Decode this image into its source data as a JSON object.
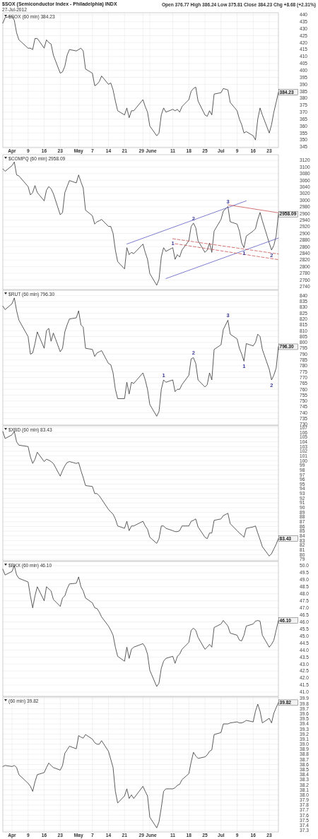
{
  "chart_data": [
    {
      "type": "line",
      "title": "$SOX (Semiconductor Index - Philadelphia) INDX",
      "subtitle": "27-Jul-2012",
      "grid": true,
      "annotations": [
        "Open 376.77 High 386.24 Low 375.81 Close 384.23 Chg +8.68 (+2.31%)"
      ],
      "x": [
        "2012-03-29",
        "2012-03-30",
        "2012-04-02",
        "2012-04-03",
        "2012-04-04",
        "2012-04-05",
        "2012-04-09",
        "2012-04-10",
        "2012-04-11",
        "2012-04-12",
        "2012-04-13",
        "2012-04-16",
        "2012-04-17",
        "2012-04-18",
        "2012-04-19",
        "2012-04-20",
        "2012-04-23",
        "2012-04-24",
        "2012-04-25",
        "2012-04-26",
        "2012-04-27",
        "2012-04-30",
        "2012-05-01",
        "2012-05-02",
        "2012-05-03",
        "2012-05-04",
        "2012-05-07",
        "2012-05-08",
        "2012-05-09",
        "2012-05-10",
        "2012-05-11",
        "2012-05-14",
        "2012-05-15",
        "2012-05-16",
        "2012-05-17",
        "2012-05-18",
        "2012-05-21",
        "2012-05-22",
        "2012-05-23",
        "2012-05-24",
        "2012-05-25",
        "2012-05-29",
        "2012-05-30",
        "2012-05-31",
        "2012-06-01",
        "2012-06-04",
        "2012-06-05",
        "2012-06-06",
        "2012-06-07",
        "2012-06-08",
        "2012-06-11",
        "2012-06-12",
        "2012-06-13",
        "2012-06-14",
        "2012-06-15",
        "2012-06-18",
        "2012-06-19",
        "2012-06-20",
        "2012-06-21",
        "2012-06-22",
        "2012-06-25",
        "2012-06-26",
        "2012-06-27",
        "2012-06-28",
        "2012-06-29",
        "2012-07-02",
        "2012-07-03",
        "2012-07-05",
        "2012-07-06",
        "2012-07-09",
        "2012-07-10",
        "2012-07-11",
        "2012-07-12",
        "2012-07-13",
        "2012-07-16",
        "2012-07-17",
        "2012-07-18",
        "2012-07-19",
        "2012-07-20",
        "2012-07-23",
        "2012-07-24",
        "2012-07-25",
        "2012-07-26",
        "2012-07-27"
      ],
      "xlim": [
        "2012-03-29",
        "2012-07-27"
      ],
      "xticks": [
        {
          "value": "2012-04-02",
          "label": "Apr"
        },
        {
          "value": "2012-04-09",
          "label": "9"
        },
        {
          "value": "2012-04-16",
          "label": "16"
        },
        {
          "value": "2012-04-23",
          "label": "23"
        },
        {
          "value": "2012-05-01",
          "label": "May"
        },
        {
          "value": "2012-05-07",
          "label": "7"
        },
        {
          "value": "2012-05-14",
          "label": "14"
        },
        {
          "value": "2012-05-21",
          "label": "21"
        },
        {
          "value": "2012-05-29",
          "label": "29"
        },
        {
          "value": "2012-06-01",
          "label": "June"
        },
        {
          "value": "2012-06-11",
          "label": "11"
        },
        {
          "value": "2012-06-18",
          "label": "18"
        },
        {
          "value": "2012-06-25",
          "label": "25"
        },
        {
          "value": "2012-07-02",
          "label": "Jul"
        },
        {
          "value": "2012-07-09",
          "label": "9"
        },
        {
          "value": "2012-07-16",
          "label": "16"
        },
        {
          "value": "2012-07-23",
          "label": "23"
        }
      ],
      "ylim": [
        344.5,
        441.5
      ],
      "yticks": [
        440,
        435,
        430,
        425,
        420,
        415,
        410,
        405,
        400,
        395,
        390,
        385,
        380,
        375,
        370,
        365,
        360,
        355,
        350,
        345
      ],
      "series": [
        {
          "name": "$SOX (60 min) 384.23",
          "color": "#333333",
          "values": [
            434,
            438,
            439,
            436,
            427,
            422,
            416,
            416,
            415,
            423,
            423,
            416,
            422,
            420,
            419,
            411,
            398,
            399,
            403,
            411,
            415,
            414,
            415,
            416,
            414,
            401,
            398,
            389,
            390,
            392,
            396,
            390,
            391,
            386,
            378,
            371,
            368,
            373,
            366,
            371,
            371,
            379,
            374,
            370,
            360,
            353,
            355,
            368,
            373,
            370,
            372,
            371,
            372,
            370,
            374,
            379,
            385,
            387,
            388,
            378,
            368,
            367,
            371,
            368,
            383,
            384,
            387,
            386,
            377,
            371,
            365,
            361,
            355,
            356,
            353,
            350,
            365,
            373,
            368,
            355,
            361,
            370,
            377,
            384.23
          ],
          "value_labels": [
            null,
            null,
            null,
            null,
            null,
            null,
            null,
            null,
            null,
            null,
            null,
            null,
            null,
            null,
            null,
            null,
            null,
            null,
            null,
            null,
            null,
            null,
            null,
            null,
            null,
            null,
            null,
            null,
            null,
            null,
            null,
            null,
            null,
            null,
            null,
            null,
            null,
            null,
            null,
            null,
            null,
            null,
            null,
            null,
            null,
            null,
            null,
            null,
            null,
            null,
            null,
            null,
            null,
            null,
            null,
            null,
            null,
            null,
            null,
            null,
            null,
            null,
            null,
            null,
            null,
            null,
            null,
            null,
            null,
            null,
            null,
            null,
            null,
            null,
            null,
            null,
            null,
            null,
            null,
            null,
            null,
            null,
            null,
            "384.23"
          ]
        }
      ]
    },
    {
      "type": "line",
      "grid": true,
      "tick_labels": "y",
      "annotations": [
        {
          "text": "1",
          "x": "2012-06-11",
          "y": 2857
        },
        {
          "text": "2",
          "x": "2012-06-20",
          "y": 2931
        },
        {
          "text": "3",
          "x": "2012-07-05",
          "y": 2981
        },
        {
          "text": "1",
          "x": "2012-07-12",
          "y": 2857
        },
        {
          "text": "2",
          "x": "2012-07-24",
          "y": 2850
        }
      ],
      "x": [
        "2012-03-29",
        "2012-03-30",
        "2012-04-02",
        "2012-04-03",
        "2012-04-04",
        "2012-04-05",
        "2012-04-09",
        "2012-04-10",
        "2012-04-11",
        "2012-04-12",
        "2012-04-13",
        "2012-04-16",
        "2012-04-17",
        "2012-04-18",
        "2012-04-19",
        "2012-04-20",
        "2012-04-23",
        "2012-04-24",
        "2012-04-25",
        "2012-04-26",
        "2012-04-27",
        "2012-04-30",
        "2012-05-01",
        "2012-05-02",
        "2012-05-03",
        "2012-05-04",
        "2012-05-07",
        "2012-05-08",
        "2012-05-09",
        "2012-05-10",
        "2012-05-11",
        "2012-05-14",
        "2012-05-15",
        "2012-05-16",
        "2012-05-17",
        "2012-05-18",
        "2012-05-21",
        "2012-05-22",
        "2012-05-23",
        "2012-05-24",
        "2012-05-25",
        "2012-05-29",
        "2012-05-30",
        "2012-05-31",
        "2012-06-01",
        "2012-06-04",
        "2012-06-05",
        "2012-06-06",
        "2012-06-07",
        "2012-06-08",
        "2012-06-11",
        "2012-06-12",
        "2012-06-13",
        "2012-06-14",
        "2012-06-15",
        "2012-06-18",
        "2012-06-19",
        "2012-06-20",
        "2012-06-21",
        "2012-06-22",
        "2012-06-25",
        "2012-06-26",
        "2012-06-27",
        "2012-06-28",
        "2012-06-29",
        "2012-07-02",
        "2012-07-03",
        "2012-07-05",
        "2012-07-06",
        "2012-07-09",
        "2012-07-10",
        "2012-07-11",
        "2012-07-12",
        "2012-07-13",
        "2012-07-16",
        "2012-07-17",
        "2012-07-18",
        "2012-07-19",
        "2012-07-20",
        "2012-07-23",
        "2012-07-24",
        "2012-07-25",
        "2012-07-26",
        "2012-07-27"
      ],
      "xlim": [
        "2012-03-29",
        "2012-07-27"
      ],
      "ylim": [
        2731,
        3137
      ],
      "yticks": [
        3120,
        3100,
        3080,
        3060,
        3040,
        3020,
        3000,
        2980,
        2960,
        2940,
        2920,
        2900,
        2880,
        2860,
        2840,
        2820,
        2800,
        2780,
        2760,
        2740
      ],
      "series": [
        {
          "name": "$COMPQ (60 min) 2958.09",
          "color": "#333333",
          "values": [
            3094,
            3087,
            3104,
            3115,
            3076,
            3073,
            3041,
            3016,
            3023,
            3044,
            3023,
            2998,
            3030,
            3041,
            3034,
            3020,
            2956,
            2963,
            3023,
            3041,
            3059,
            3052,
            3076,
            3055,
            3037,
            2970,
            2953,
            2928,
            2935,
            2938,
            2942,
            2921,
            2921,
            2900,
            2850,
            2815,
            2793,
            2857,
            2836,
            2843,
            2839,
            2868,
            2843,
            2822,
            2779,
            2744,
            2762,
            2829,
            2857,
            2846,
            2857,
            2822,
            2836,
            2829,
            2850,
            2878,
            2921,
            2931,
            2917,
            2878,
            2843,
            2850,
            2871,
            2843,
            2907,
            2942,
            2967,
            2981,
            2935,
            2928,
            2907,
            2871,
            2857,
            2892,
            2907,
            2914,
            2942,
            2963,
            2938,
            2871,
            2850,
            2864,
            2892,
            2958.09
          ],
          "value_labels": [
            null,
            null,
            null,
            null,
            null,
            null,
            null,
            null,
            null,
            null,
            null,
            null,
            null,
            null,
            null,
            null,
            null,
            null,
            null,
            null,
            null,
            null,
            null,
            null,
            null,
            null,
            null,
            null,
            null,
            null,
            null,
            null,
            null,
            null,
            null,
            null,
            null,
            null,
            null,
            null,
            null,
            null,
            null,
            null,
            null,
            null,
            null,
            null,
            null,
            null,
            null,
            null,
            null,
            null,
            null,
            null,
            null,
            null,
            null,
            null,
            null,
            null,
            null,
            null,
            null,
            null,
            null,
            null,
            null,
            null,
            null,
            null,
            null,
            null,
            null,
            null,
            null,
            null,
            null,
            null,
            null,
            null,
            null,
            "2958.09"
          ]
        },
        {
          "type": "line",
          "color": "#5a5ac0",
          "x": [
            "2012-05-22",
            "2012-07-13"
          ],
          "values": [
            2868,
            2998
          ]
        },
        {
          "type": "line",
          "color": "#5a5ac0",
          "x": [
            "2012-06-08",
            "2012-07-27"
          ],
          "values": [
            2764,
            2886
          ]
        },
        {
          "type": "line",
          "color": "#c85050",
          "x": [
            "2012-07-05",
            "2012-07-27"
          ],
          "values": [
            2986,
            2962
          ]
        },
        {
          "type": "line",
          "color": "#c85050",
          "line_style": "dashed",
          "x": [
            "2012-06-11",
            "2012-07-27"
          ],
          "values": [
            2884,
            2838
          ]
        },
        {
          "type": "line",
          "color": "#c85050",
          "line_style": "dashed",
          "x": [
            "2012-06-12",
            "2012-07-27"
          ],
          "values": [
            2869,
            2821
          ]
        }
      ]
    },
    {
      "type": "line",
      "grid": true,
      "tick_labels": "y",
      "annotations": [
        {
          "text": "1",
          "x": "2012-06-07",
          "y": 768
        },
        {
          "text": "2",
          "x": "2012-06-20",
          "y": 787
        },
        {
          "text": "3",
          "x": "2012-07-05",
          "y": 819
        },
        {
          "text": "1",
          "x": "2012-07-12",
          "y": 784
        },
        {
          "text": "2",
          "x": "2012-07-24",
          "y": 768
        }
      ],
      "x": [
        "2012-03-29",
        "2012-03-30",
        "2012-04-02",
        "2012-04-03",
        "2012-04-04",
        "2012-04-05",
        "2012-04-09",
        "2012-04-10",
        "2012-04-11",
        "2012-04-12",
        "2012-04-13",
        "2012-04-16",
        "2012-04-17",
        "2012-04-18",
        "2012-04-19",
        "2012-04-20",
        "2012-04-23",
        "2012-04-24",
        "2012-04-25",
        "2012-04-26",
        "2012-04-27",
        "2012-04-30",
        "2012-05-01",
        "2012-05-02",
        "2012-05-03",
        "2012-05-04",
        "2012-05-07",
        "2012-05-08",
        "2012-05-09",
        "2012-05-10",
        "2012-05-11",
        "2012-05-14",
        "2012-05-15",
        "2012-05-16",
        "2012-05-17",
        "2012-05-18",
        "2012-05-21",
        "2012-05-22",
        "2012-05-23",
        "2012-05-24",
        "2012-05-25",
        "2012-05-29",
        "2012-05-30",
        "2012-05-31",
        "2012-06-01",
        "2012-06-04",
        "2012-06-05",
        "2012-06-06",
        "2012-06-07",
        "2012-06-08",
        "2012-06-11",
        "2012-06-12",
        "2012-06-13",
        "2012-06-14",
        "2012-06-15",
        "2012-06-18",
        "2012-06-19",
        "2012-06-20",
        "2012-06-21",
        "2012-06-22",
        "2012-06-25",
        "2012-06-26",
        "2012-06-27",
        "2012-06-28",
        "2012-06-29",
        "2012-07-02",
        "2012-07-03",
        "2012-07-05",
        "2012-07-06",
        "2012-07-09",
        "2012-07-10",
        "2012-07-11",
        "2012-07-12",
        "2012-07-13",
        "2012-07-16",
        "2012-07-17",
        "2012-07-18",
        "2012-07-19",
        "2012-07-20",
        "2012-07-23",
        "2012-07-24",
        "2012-07-25",
        "2012-07-26",
        "2012-07-27"
      ],
      "xlim": [
        "2012-03-29",
        "2012-07-27"
      ],
      "ylim": [
        729.4,
        844.5
      ],
      "yticks": [
        840,
        835,
        830,
        825,
        820,
        815,
        810,
        805,
        800,
        795,
        790,
        785,
        780,
        775,
        770,
        765,
        760,
        755,
        750,
        745,
        740,
        735,
        730
      ],
      "series": [
        {
          "name": "$RUT (60 min) 796.30",
          "color": "#333333",
          "values": [
            831,
            828,
            833,
            838,
            827,
            819,
            805,
            790,
            791,
            799,
            809,
            795,
            810,
            812,
            801,
            808,
            792,
            795,
            809,
            815,
            820,
            821,
            827,
            815,
            813,
            795,
            794,
            788,
            791,
            792,
            793,
            782,
            781,
            774,
            760,
            752,
            752,
            766,
            756,
            766,
            765,
            774,
            768,
            760,
            747,
            737,
            741,
            760,
            768,
            766,
            768,
            758,
            760,
            760,
            764,
            772,
            786,
            787,
            782,
            768,
            762,
            764,
            774,
            768,
            794,
            798,
            811,
            819,
            807,
            803,
            795,
            790,
            784,
            799,
            797,
            800,
            807,
            805,
            794,
            777,
            768,
            772,
            778,
            796.3
          ],
          "value_labels": [
            null,
            null,
            null,
            null,
            null,
            null,
            null,
            null,
            null,
            null,
            null,
            null,
            null,
            null,
            null,
            null,
            null,
            null,
            null,
            null,
            null,
            null,
            null,
            null,
            null,
            null,
            null,
            null,
            null,
            null,
            null,
            null,
            null,
            null,
            null,
            null,
            null,
            null,
            null,
            null,
            null,
            null,
            null,
            null,
            null,
            null,
            null,
            null,
            null,
            null,
            null,
            null,
            null,
            null,
            null,
            null,
            null,
            null,
            null,
            null,
            null,
            null,
            null,
            null,
            null,
            null,
            null,
            null,
            null,
            null,
            null,
            null,
            null,
            null,
            null,
            null,
            null,
            null,
            null,
            null,
            null,
            null,
            null,
            "796.30"
          ]
        }
      ]
    },
    {
      "type": "line",
      "grid": true,
      "tick_labels": "y",
      "x": [
        "2012-03-29",
        "2012-03-30",
        "2012-04-02",
        "2012-04-03",
        "2012-04-04",
        "2012-04-05",
        "2012-04-09",
        "2012-04-10",
        "2012-04-11",
        "2012-04-12",
        "2012-04-13",
        "2012-04-16",
        "2012-04-17",
        "2012-04-18",
        "2012-04-19",
        "2012-04-20",
        "2012-04-23",
        "2012-04-24",
        "2012-04-25",
        "2012-04-26",
        "2012-04-27",
        "2012-04-30",
        "2012-05-01",
        "2012-05-02",
        "2012-05-03",
        "2012-05-04",
        "2012-05-07",
        "2012-05-08",
        "2012-05-09",
        "2012-05-10",
        "2012-05-11",
        "2012-05-14",
        "2012-05-15",
        "2012-05-16",
        "2012-05-17",
        "2012-05-18",
        "2012-05-21",
        "2012-05-22",
        "2012-05-23",
        "2012-05-24",
        "2012-05-25",
        "2012-05-29",
        "2012-05-30",
        "2012-05-31",
        "2012-06-01",
        "2012-06-04",
        "2012-06-05",
        "2012-06-06",
        "2012-06-07",
        "2012-06-08",
        "2012-06-11",
        "2012-06-12",
        "2012-06-13",
        "2012-06-14",
        "2012-06-15",
        "2012-06-18",
        "2012-06-19",
        "2012-06-20",
        "2012-06-21",
        "2012-06-22",
        "2012-06-25",
        "2012-06-26",
        "2012-06-27",
        "2012-06-28",
        "2012-06-29",
        "2012-07-02",
        "2012-07-03",
        "2012-07-05",
        "2012-07-06",
        "2012-07-09",
        "2012-07-10",
        "2012-07-11",
        "2012-07-12",
        "2012-07-13",
        "2012-07-16",
        "2012-07-17",
        "2012-07-18",
        "2012-07-19",
        "2012-07-20",
        "2012-07-23",
        "2012-07-24",
        "2012-07-25",
        "2012-07-26",
        "2012-07-27"
      ],
      "xlim": [
        "2012-03-29",
        "2012-07-27"
      ],
      "ylim": [
        78.7,
        107.4
      ],
      "yticks": [
        107,
        106,
        105,
        104,
        103,
        102,
        101,
        100,
        99,
        98,
        97,
        96,
        95,
        94,
        93,
        92,
        91,
        90,
        89,
        88,
        87,
        86,
        85,
        84,
        83,
        82,
        81,
        80,
        79
      ],
      "series": [
        {
          "name": "$XBD (60 min) 83.43",
          "color": "#333333",
          "values": [
            106.2,
            104.7,
            105.5,
            106.2,
            104.0,
            103.3,
            103.0,
            100.8,
            99.4,
            100.3,
            101.8,
            99.8,
            100.3,
            100.1,
            99.8,
            99.4,
            96.7,
            97.9,
            98.9,
            99.6,
            99.8,
            99.4,
            99.6,
            97.9,
            96.4,
            94.7,
            94.5,
            93.0,
            93.0,
            92.5,
            91.8,
            89.6,
            89.1,
            88.6,
            87.6,
            86.1,
            85.6,
            87.1,
            85.1,
            86.1,
            86.1,
            87.1,
            86.1,
            85.4,
            83.7,
            82.4,
            83.4,
            86.1,
            86.1,
            85.6,
            85.1,
            84.9,
            84.9,
            85.1,
            86.1,
            86.1,
            87.1,
            87.3,
            87.6,
            85.9,
            83.7,
            83.4,
            84.6,
            84.6,
            87.3,
            87.6,
            88.3,
            88.8,
            86.6,
            85.1,
            84.6,
            84.2,
            83.7,
            85.6,
            85.9,
            86.1,
            84.6,
            83.2,
            81.7,
            79.7,
            80.2,
            81.2,
            82.2,
            83.43
          ],
          "value_labels": [
            null,
            null,
            null,
            null,
            null,
            null,
            null,
            null,
            null,
            null,
            null,
            null,
            null,
            null,
            null,
            null,
            null,
            null,
            null,
            null,
            null,
            null,
            null,
            null,
            null,
            null,
            null,
            null,
            null,
            null,
            null,
            null,
            null,
            null,
            null,
            null,
            null,
            null,
            null,
            null,
            null,
            null,
            null,
            null,
            null,
            null,
            null,
            null,
            null,
            null,
            null,
            null,
            null,
            null,
            null,
            null,
            null,
            null,
            null,
            null,
            null,
            null,
            null,
            null,
            null,
            null,
            null,
            null,
            null,
            null,
            null,
            null,
            null,
            null,
            null,
            null,
            null,
            null,
            null,
            null,
            null,
            null,
            null,
            "83.43"
          ]
        }
      ]
    },
    {
      "type": "line",
      "grid": true,
      "tick_labels": "y",
      "x": [
        "2012-03-29",
        "2012-03-30",
        "2012-04-02",
        "2012-04-03",
        "2012-04-04",
        "2012-04-05",
        "2012-04-09",
        "2012-04-10",
        "2012-04-11",
        "2012-04-12",
        "2012-04-13",
        "2012-04-16",
        "2012-04-17",
        "2012-04-18",
        "2012-04-19",
        "2012-04-20",
        "2012-04-23",
        "2012-04-24",
        "2012-04-25",
        "2012-04-26",
        "2012-04-27",
        "2012-04-30",
        "2012-05-01",
        "2012-05-02",
        "2012-05-03",
        "2012-05-04",
        "2012-05-07",
        "2012-05-08",
        "2012-05-09",
        "2012-05-10",
        "2012-05-11",
        "2012-05-14",
        "2012-05-15",
        "2012-05-16",
        "2012-05-17",
        "2012-05-18",
        "2012-05-21",
        "2012-05-22",
        "2012-05-23",
        "2012-05-24",
        "2012-05-25",
        "2012-05-29",
        "2012-05-30",
        "2012-05-31",
        "2012-06-01",
        "2012-06-04",
        "2012-06-05",
        "2012-06-06",
        "2012-06-07",
        "2012-06-08",
        "2012-06-11",
        "2012-06-12",
        "2012-06-13",
        "2012-06-14",
        "2012-06-15",
        "2012-06-18",
        "2012-06-19",
        "2012-06-20",
        "2012-06-21",
        "2012-06-22",
        "2012-06-25",
        "2012-06-26",
        "2012-06-27",
        "2012-06-28",
        "2012-06-29",
        "2012-07-02",
        "2012-07-03",
        "2012-07-05",
        "2012-07-06",
        "2012-07-09",
        "2012-07-10",
        "2012-07-11",
        "2012-07-12",
        "2012-07-13",
        "2012-07-16",
        "2012-07-17",
        "2012-07-18",
        "2012-07-19",
        "2012-07-20",
        "2012-07-23",
        "2012-07-24",
        "2012-07-25",
        "2012-07-26",
        "2012-07-27"
      ],
      "xlim": [
        "2012-03-29",
        "2012-07-27"
      ],
      "ylim": [
        40.7,
        50.3
      ],
      "yticks": [
        {
          "value": 50,
          "label": "50.0"
        },
        49.5,
        {
          "value": 49,
          "label": "49.0"
        },
        48.5,
        {
          "value": 48,
          "label": "48.0"
        },
        47.5,
        {
          "value": 47,
          "label": "47.0"
        },
        46.5,
        {
          "value": 46,
          "label": "46.0"
        },
        45.5,
        {
          "value": 45,
          "label": "45.0"
        },
        44.5,
        {
          "value": 44,
          "label": "44.0"
        },
        43.5,
        {
          "value": 43,
          "label": "43.0"
        },
        42.5,
        {
          "value": 42,
          "label": "42.0"
        },
        41.5,
        {
          "value": 41,
          "label": "41.0"
        }
      ],
      "series": [
        {
          "name": "$BKX (60 min) 46.10",
          "color": "#333333",
          "values": [
            49.75,
            49.34,
            49.59,
            50.0,
            49.34,
            49.1,
            48.84,
            47.85,
            47.0,
            47.85,
            48.5,
            47.5,
            48.5,
            48.35,
            48.2,
            47.6,
            47.1,
            47.7,
            47.85,
            48.35,
            48.7,
            48.75,
            49.2,
            48.5,
            48.2,
            47.7,
            47.35,
            47.0,
            46.95,
            46.7,
            46.35,
            45.7,
            45.4,
            45.05,
            44.2,
            43.55,
            43.2,
            44.2,
            43.4,
            44.05,
            44.2,
            44.45,
            44.2,
            43.7,
            42.55,
            41.4,
            41.65,
            42.7,
            43.2,
            43.4,
            43.55,
            43.05,
            43.55,
            43.7,
            44.05,
            44.55,
            45.4,
            45.55,
            45.4,
            44.9,
            44.05,
            44.2,
            44.4,
            44.2,
            45.6,
            45.85,
            46.1,
            45.7,
            45.2,
            45.05,
            44.7,
            44.65,
            45.05,
            45.7,
            45.85,
            46.05,
            46.1,
            46.05,
            45.05,
            44.2,
            44.4,
            44.7,
            45.4,
            46.1
          ],
          "value_labels": [
            null,
            null,
            null,
            null,
            null,
            null,
            null,
            null,
            null,
            null,
            null,
            null,
            null,
            null,
            null,
            null,
            null,
            null,
            null,
            null,
            null,
            null,
            null,
            null,
            null,
            null,
            null,
            null,
            null,
            null,
            null,
            null,
            null,
            null,
            null,
            null,
            null,
            null,
            null,
            null,
            null,
            null,
            null,
            null,
            null,
            null,
            null,
            null,
            null,
            null,
            null,
            null,
            null,
            null,
            null,
            null,
            null,
            null,
            null,
            null,
            null,
            null,
            null,
            null,
            null,
            null,
            null,
            null,
            null,
            null,
            null,
            null,
            null,
            null,
            null,
            null,
            null,
            null,
            null,
            null,
            null,
            null,
            null,
            "46.10"
          ]
        }
      ]
    },
    {
      "type": "line",
      "grid": true,
      "x": [
        "2012-03-29",
        "2012-03-30",
        "2012-04-02",
        "2012-04-03",
        "2012-04-04",
        "2012-04-05",
        "2012-04-09",
        "2012-04-10",
        "2012-04-11",
        "2012-04-12",
        "2012-04-13",
        "2012-04-16",
        "2012-04-17",
        "2012-04-18",
        "2012-04-19",
        "2012-04-20",
        "2012-04-23",
        "2012-04-24",
        "2012-04-25",
        "2012-04-26",
        "2012-04-27",
        "2012-04-30",
        "2012-05-01",
        "2012-05-02",
        "2012-05-03",
        "2012-05-04",
        "2012-05-07",
        "2012-05-08",
        "2012-05-09",
        "2012-05-10",
        "2012-05-11",
        "2012-05-14",
        "2012-05-15",
        "2012-05-16",
        "2012-05-17",
        "2012-05-18",
        "2012-05-21",
        "2012-05-22",
        "2012-05-23",
        "2012-05-24",
        "2012-05-25",
        "2012-05-29",
        "2012-05-30",
        "2012-05-31",
        "2012-06-01",
        "2012-06-04",
        "2012-06-05",
        "2012-06-06",
        "2012-06-07",
        "2012-06-08",
        "2012-06-11",
        "2012-06-12",
        "2012-06-13",
        "2012-06-14",
        "2012-06-15",
        "2012-06-18",
        "2012-06-19",
        "2012-06-20",
        "2012-06-21",
        "2012-06-22",
        "2012-06-25",
        "2012-06-26",
        "2012-06-27",
        "2012-06-28",
        "2012-06-29",
        "2012-07-02",
        "2012-07-03",
        "2012-07-05",
        "2012-07-06",
        "2012-07-09",
        "2012-07-10",
        "2012-07-11",
        "2012-07-12",
        "2012-07-13",
        "2012-07-16",
        "2012-07-17",
        "2012-07-18",
        "2012-07-19",
        "2012-07-20",
        "2012-07-23",
        "2012-07-24",
        "2012-07-25",
        "2012-07-26",
        "2012-07-27"
      ],
      "xlim": [
        "2012-03-29",
        "2012-07-27"
      ],
      "xticks": [
        {
          "value": "2012-04-02",
          "label": "Apr"
        },
        {
          "value": "2012-04-09",
          "label": "9"
        },
        {
          "value": "2012-04-16",
          "label": "16"
        },
        {
          "value": "2012-04-23",
          "label": "23"
        },
        {
          "value": "2012-05-01",
          "label": "May"
        },
        {
          "value": "2012-05-07",
          "label": "7"
        },
        {
          "value": "2012-05-14",
          "label": "14"
        },
        {
          "value": "2012-05-21",
          "label": "21"
        },
        {
          "value": "2012-05-29",
          "label": "29"
        },
        {
          "value": "2012-06-01",
          "label": "June"
        },
        {
          "value": "2012-06-11",
          "label": "11"
        },
        {
          "value": "2012-06-18",
          "label": "18"
        },
        {
          "value": "2012-06-25",
          "label": "25"
        },
        {
          "value": "2012-07-02",
          "label": "Jul"
        },
        {
          "value": "2012-07-09",
          "label": "9"
        },
        {
          "value": "2012-07-16",
          "label": "16"
        },
        {
          "value": "2012-07-23",
          "label": "23"
        }
      ],
      "ylim": [
        37.27,
        39.93
      ],
      "yticks": [
        39.9,
        39.8,
        39.7,
        39.6,
        39.5,
        39.4,
        39.3,
        39.2,
        39.1,
        {
          "value": 39,
          "label": "39.0"
        },
        38.9,
        38.8,
        38.7,
        38.6,
        38.5,
        38.4,
        38.3,
        38.2,
        38.1,
        {
          "value": 38,
          "label": "38.0"
        },
        37.9,
        37.8,
        37.7,
        37.6,
        37.5,
        37.4,
        37.3
      ],
      "series": [
        {
          "name": "(60 min) 39.82",
          "color": "#333333",
          "values": [
            38.56,
            38.58,
            38.56,
            38.58,
            38.54,
            38.4,
            38.23,
            38.17,
            38.07,
            38.26,
            38.4,
            38.44,
            38.54,
            38.63,
            38.58,
            38.54,
            38.49,
            38.58,
            38.82,
            38.89,
            38.96,
            38.91,
            39.17,
            39.14,
            39.12,
            39.19,
            39.1,
            39.03,
            39.0,
            39.0,
            39.07,
            38.86,
            38.7,
            38.54,
            38.07,
            37.84,
            37.98,
            38.12,
            37.93,
            38.0,
            37.93,
            38.17,
            38.07,
            37.98,
            37.56,
            37.35,
            37.47,
            37.75,
            38.07,
            38.12,
            38.12,
            38.14,
            38.19,
            38.21,
            38.3,
            38.42,
            38.65,
            38.84,
            38.77,
            38.72,
            38.75,
            38.79,
            38.86,
            38.89,
            39.19,
            39.23,
            39.4,
            39.4,
            39.42,
            39.44,
            39.42,
            39.42,
            39.44,
            39.47,
            39.44,
            39.65,
            39.79,
            39.65,
            39.42,
            39.51,
            39.42,
            39.61,
            39.72,
            39.82
          ],
          "value_labels": [
            null,
            null,
            null,
            null,
            null,
            null,
            null,
            null,
            null,
            null,
            null,
            null,
            null,
            null,
            null,
            null,
            null,
            null,
            null,
            null,
            null,
            null,
            null,
            null,
            null,
            null,
            null,
            null,
            null,
            null,
            null,
            null,
            null,
            null,
            null,
            null,
            null,
            null,
            null,
            null,
            null,
            null,
            null,
            null,
            null,
            null,
            null,
            null,
            null,
            null,
            null,
            null,
            null,
            null,
            null,
            null,
            null,
            null,
            null,
            null,
            null,
            null,
            null,
            null,
            null,
            null,
            null,
            null,
            null,
            null,
            null,
            null,
            null,
            null,
            null,
            null,
            null,
            null,
            null,
            null,
            null,
            null,
            null,
            "39.82"
          ]
        }
      ]
    }
  ]
}
